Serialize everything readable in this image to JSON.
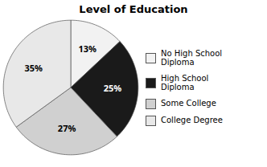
{
  "chart_data": {
    "type": "pie",
    "title": "Level of Education",
    "categories": [
      "No High School\nDiploma",
      "High School\nDiploma",
      "Some College",
      "College Degree"
    ],
    "values": [
      13,
      25,
      27,
      35
    ],
    "value_labels": [
      "13%",
      "25%",
      "27%",
      "35%"
    ],
    "colors": [
      "#f2f2f2",
      "#1a1a1a",
      "#d0d0d0",
      "#e8e8e8"
    ],
    "data_labels": true,
    "legend": "right"
  }
}
